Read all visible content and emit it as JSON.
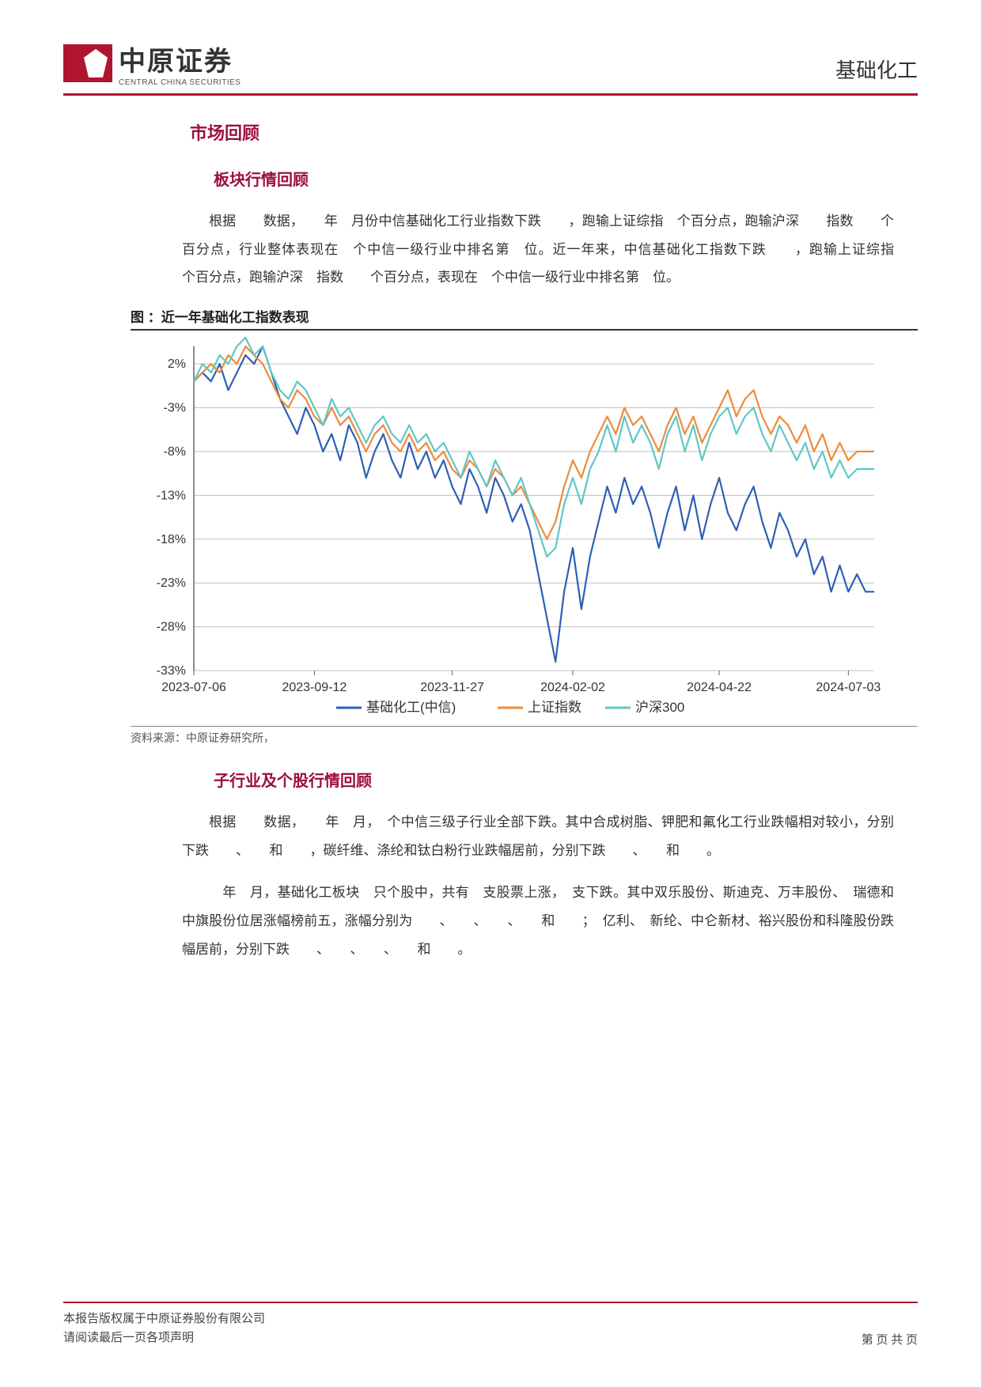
{
  "header": {
    "logo_cn": "中原证券",
    "logo_en": "CENTRAL CHINA SECURITIES",
    "right_label": "基础化工"
  },
  "section1_title": "市场回顾",
  "section1_1_title": "板块行情回顾",
  "para1": "根据　　数据，　　年　月份中信基础化工行业指数下跌　　，跑输上证综指　个百分点，跑输沪深　　指数　　个百分点，行业整体表现在　个中信一级行业中排名第　位。近一年来，中信基础化工指数下跌　　，跑输上证综指　　个百分点，跑输沪深　指数　　个百分点，表现在　个中信一级行业中排名第　位。",
  "figure_title": "图 ：近一年基础化工指数表现",
  "source": "资料来源：中原证券研究所，",
  "section1_2_title": "子行业及个股行情回顾",
  "para2": "根据　　数据，　　年　月，　个中信三级子行业全部下跌。其中合成树脂、钾肥和氟化工行业跌幅相对较小，分别下跌　　、　　和　　，碳纤维、涤纶和钛白粉行业跌幅居前，分别下跌　　、　　和　　。",
  "para3": "　年　月，基础化工板块　只个股中，共有　支股票上涨，　支下跌。其中双乐股份、斯迪克、万丰股份、　瑞德和中旗股份位居涨幅榜前五，涨幅分别为　　、　　、　　、　　和　　；　亿利、　新纶、中仑新材、裕兴股份和科隆股份跌幅居前，分别下跌　　、　　、　　、　　和　　。",
  "footer": {
    "line1": "本报告版权属于中原证券股份有限公司",
    "line2": "请阅读最后一页各项声明",
    "page": "第 页 共 页"
  },
  "chart": {
    "type": "line",
    "background_color": "#ffffff",
    "grid_color": "#bfbfbf",
    "axis_color": "#666666",
    "title_fontsize": 17,
    "label_fontsize": 16,
    "ylabel": "",
    "ylim": [
      -33,
      4
    ],
    "ytick_step": 5,
    "yticks": [
      -33,
      -28,
      -23,
      -18,
      -13,
      -8,
      -3,
      2
    ],
    "yticklabels": [
      "-33%",
      "-28%",
      "-23%",
      "-18%",
      "-13%",
      "-8%",
      "-3%",
      "2%"
    ],
    "xticks": [
      0,
      14,
      30,
      44,
      61,
      76
    ],
    "xticklabels": [
      "2023-07-06",
      "2023-09-12",
      "2023-11-27",
      "2024-02-02",
      "2024-04-22",
      "2024-07-03"
    ],
    "x_count": 80,
    "line_width": 2.2,
    "legend_position": "bottom",
    "series": [
      {
        "name": "基础化工(中信)",
        "color": "#2e5fb5",
        "values": [
          0,
          1,
          0,
          2,
          -1,
          1,
          3,
          2,
          4,
          1,
          -2,
          -4,
          -6,
          -3,
          -5,
          -8,
          -6,
          -9,
          -5,
          -7,
          -11,
          -8,
          -6,
          -9,
          -11,
          -7,
          -10,
          -8,
          -11,
          -9,
          -12,
          -14,
          -10,
          -12,
          -15,
          -11,
          -13,
          -16,
          -14,
          -17,
          -22,
          -27,
          -32,
          -24,
          -19,
          -26,
          -20,
          -16,
          -12,
          -15,
          -11,
          -14,
          -12,
          -15,
          -19,
          -15,
          -12,
          -17,
          -13,
          -18,
          -14,
          -11,
          -15,
          -17,
          -14,
          -12,
          -16,
          -19,
          -15,
          -17,
          -20,
          -18,
          -22,
          -20,
          -24,
          -21,
          -24,
          -22,
          -24,
          -24
        ]
      },
      {
        "name": "上证指数",
        "color": "#ed8b3a",
        "values": [
          0,
          1,
          2,
          1,
          3,
          2,
          4,
          3,
          2,
          0,
          -2,
          -3,
          -1,
          -2,
          -4,
          -5,
          -3,
          -5,
          -4,
          -6,
          -8,
          -6,
          -5,
          -7,
          -8,
          -6,
          -8,
          -7,
          -9,
          -8,
          -10,
          -11,
          -9,
          -10,
          -12,
          -10,
          -11,
          -13,
          -12,
          -14,
          -16,
          -18,
          -16,
          -12,
          -9,
          -11,
          -8,
          -6,
          -4,
          -6,
          -3,
          -5,
          -4,
          -6,
          -8,
          -5,
          -3,
          -6,
          -4,
          -7,
          -5,
          -3,
          -1,
          -4,
          -2,
          -1,
          -4,
          -6,
          -4,
          -5,
          -7,
          -5,
          -8,
          -6,
          -9,
          -7,
          -9,
          -8,
          -8,
          -8
        ]
      },
      {
        "name": "沪深300",
        "color": "#5fc7c7",
        "values": [
          0,
          2,
          1,
          3,
          2,
          4,
          5,
          3,
          4,
          1,
          -1,
          -2,
          0,
          -1,
          -3,
          -5,
          -2,
          -4,
          -3,
          -5,
          -7,
          -5,
          -4,
          -6,
          -7,
          -5,
          -7,
          -6,
          -8,
          -7,
          -9,
          -11,
          -8,
          -10,
          -12,
          -9,
          -11,
          -13,
          -11,
          -14,
          -17,
          -20,
          -19,
          -14,
          -11,
          -14,
          -10,
          -8,
          -5,
          -8,
          -4,
          -7,
          -5,
          -7,
          -10,
          -6,
          -4,
          -8,
          -5,
          -9,
          -6,
          -4,
          -3,
          -6,
          -4,
          -3,
          -6,
          -8,
          -5,
          -7,
          -9,
          -7,
          -10,
          -8,
          -11,
          -9,
          -11,
          -10,
          -10,
          -10
        ]
      }
    ]
  }
}
